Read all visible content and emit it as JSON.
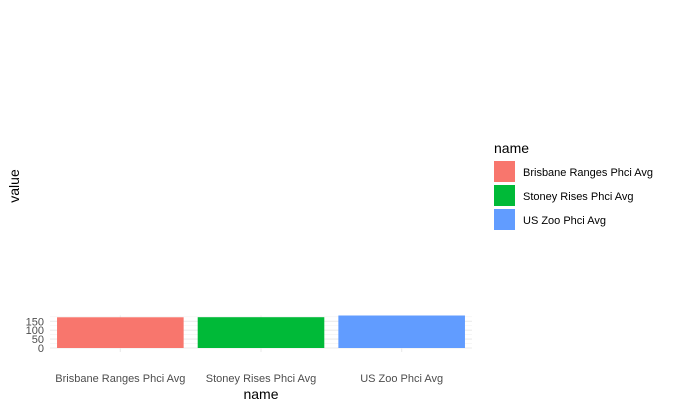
{
  "chart_data": {
    "type": "bar",
    "categories": [
      "Brisbane Ranges Phci Avg",
      "Stoney Rises Phci Avg",
      "US Zoo Phci Avg"
    ],
    "values": [
      172.5,
      173,
      182.5
    ],
    "colors": [
      "#F8766D",
      "#00BA38",
      "#619CFF"
    ],
    "xlabel": "name",
    "ylabel": "value",
    "ylim": [
      0,
      182.5
    ],
    "yticks": [
      0,
      50,
      100,
      150
    ],
    "grid": true,
    "legend": {
      "title": "name",
      "position": "right",
      "entries": [
        "Brisbane Ranges Phci Avg",
        "Stoney Rises Phci Avg",
        "US Zoo Phci Avg"
      ]
    }
  }
}
